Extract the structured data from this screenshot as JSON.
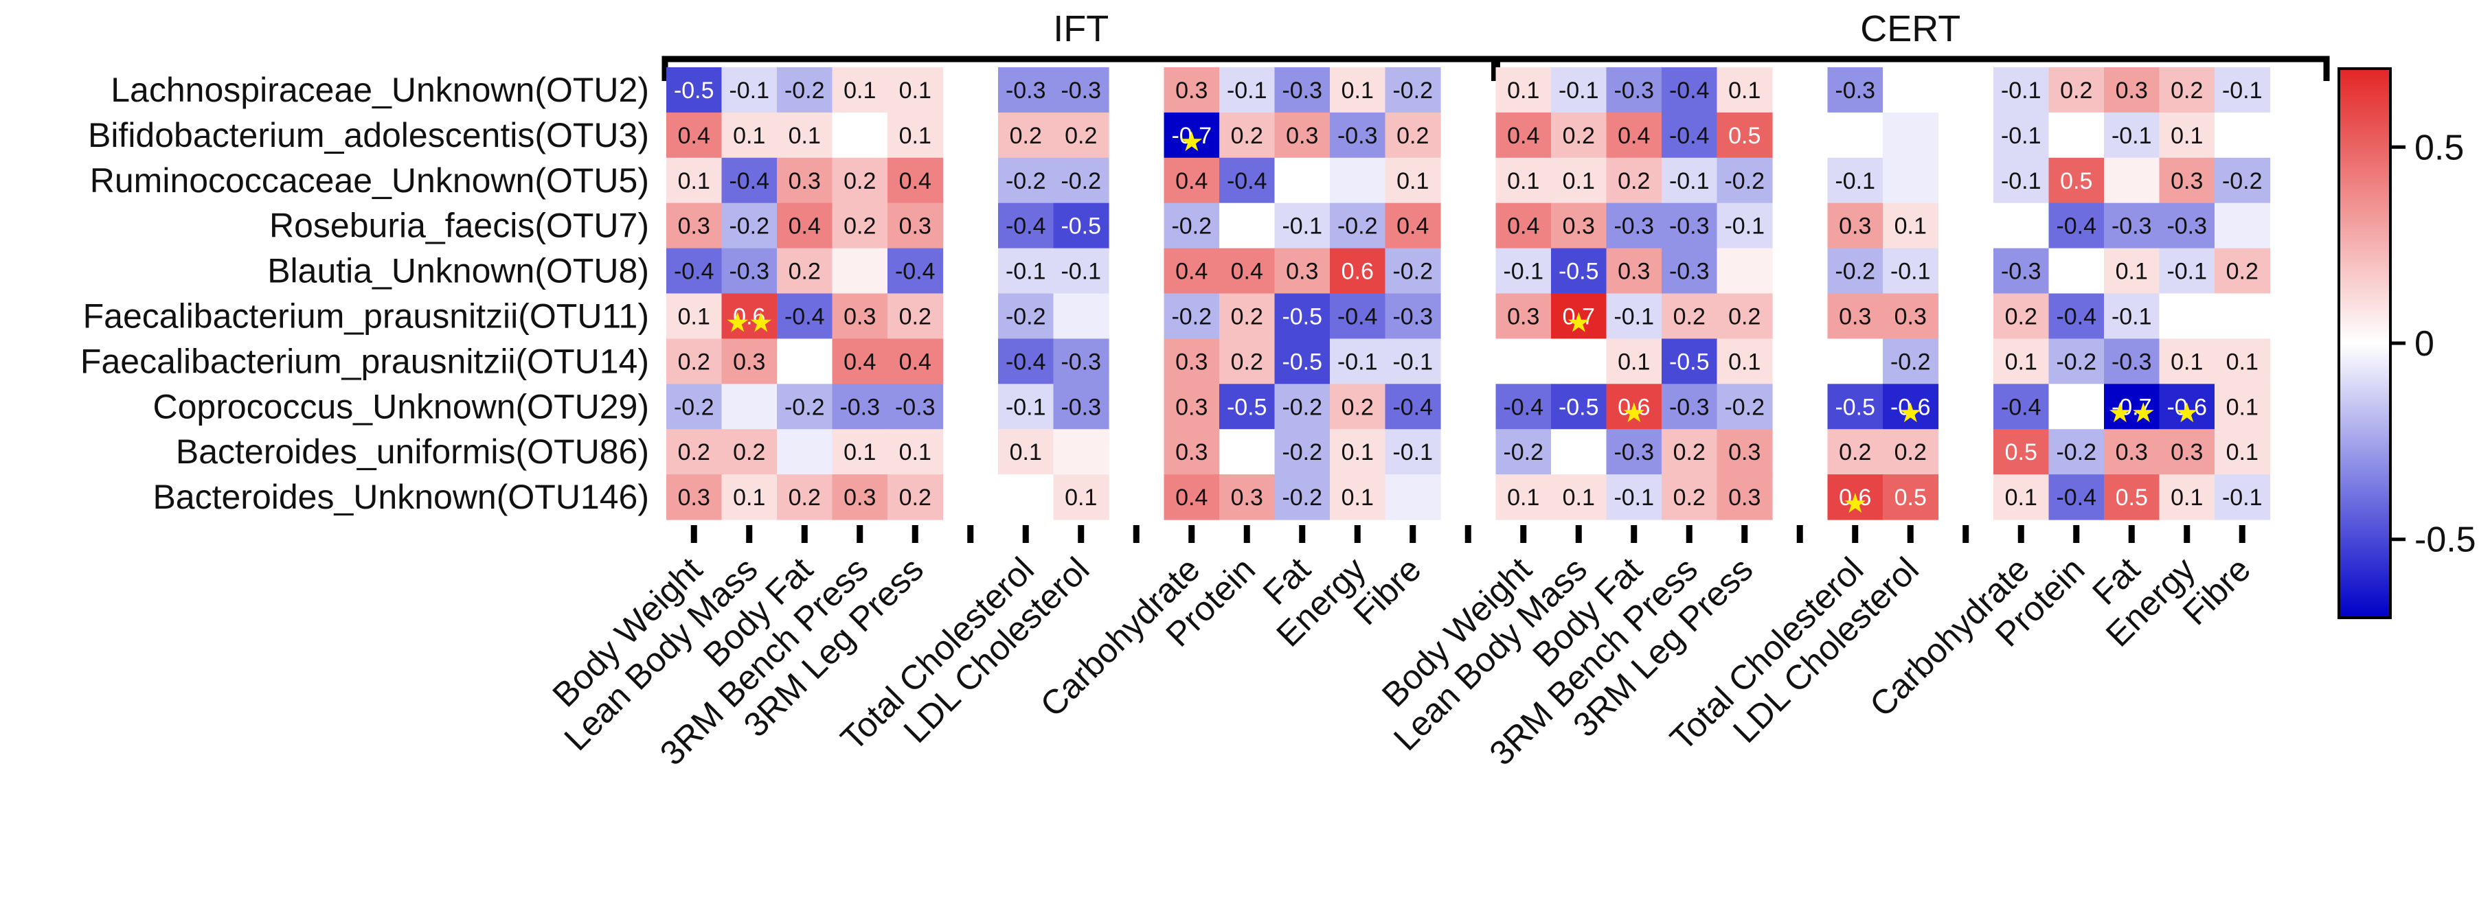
{
  "chart_data": {
    "type": "heatmap",
    "title": "",
    "groups": [
      {
        "name": "IFT",
        "column_range": [
          0,
          14
        ]
      },
      {
        "name": "CERT",
        "column_range": [
          15,
          29
        ]
      }
    ],
    "rows": [
      "Lachnospiraceae_Unknown(OTU2)",
      "Bifidobacterium_adolescentis(OTU3)",
      "Ruminococcaceae_Unknown(OTU5)",
      "Roseburia_faecis(OTU7)",
      "Blautia_Unknown(OTU8)",
      "Faecalibacterium_prausnitzii(OTU11)",
      "Faecalibacterium_prausnitzii(OTU14)",
      "Coprococcus_Unknown(OTU29)",
      "Bacteroides_uniformis(OTU86)",
      "Bacteroides_Unknown(OTU146)"
    ],
    "columns": [
      "Body Weight",
      "Lean Body Mass",
      "Body Fat",
      "3RM Bench Press",
      "3RM Leg Press",
      "",
      "Total Cholesterol",
      "LDL Cholesterol",
      "",
      "Carbohydrate",
      "Protein",
      "Fat",
      "Energy",
      "Fibre",
      "",
      "Body Weight",
      "Lean Body Mass",
      "Body Fat",
      "3RM Bench Press",
      "3RM Leg Press",
      "",
      "Total Cholesterol",
      "LDL Cholesterol",
      "",
      "Carbohydrate",
      "Protein",
      "Fat",
      "Energy",
      "Fibre"
    ],
    "spacer_columns": [
      5,
      8,
      14,
      20,
      23
    ],
    "values": [
      [
        -0.5,
        -0.1,
        -0.2,
        0.1,
        0.1,
        null,
        -0.3,
        -0.3,
        null,
        0.3,
        -0.1,
        -0.3,
        0.1,
        -0.2,
        null,
        0.1,
        -0.1,
        -0.3,
        -0.4,
        0.1,
        null,
        -0.3,
        0.0,
        null,
        -0.1,
        0.2,
        0.3,
        0.2,
        -0.1
      ],
      [
        0.4,
        0.1,
        0.1,
        0.0,
        0.1,
        null,
        0.2,
        0.2,
        null,
        -0.7,
        0.2,
        0.3,
        -0.3,
        0.2,
        null,
        0.4,
        0.2,
        0.4,
        -0.4,
        0.5,
        null,
        0.0,
        -0.05,
        null,
        -0.1,
        0.0,
        -0.1,
        0.1,
        0.0
      ],
      [
        0.1,
        -0.4,
        0.3,
        0.2,
        0.4,
        null,
        -0.2,
        -0.2,
        null,
        0.4,
        -0.4,
        0.0,
        -0.05,
        0.1,
        null,
        0.1,
        0.1,
        0.2,
        -0.1,
        -0.2,
        null,
        -0.1,
        -0.05,
        null,
        -0.1,
        0.5,
        0.05,
        0.3,
        -0.2
      ],
      [
        0.3,
        -0.2,
        0.4,
        0.2,
        0.3,
        null,
        -0.4,
        -0.5,
        null,
        -0.2,
        0.0,
        -0.1,
        -0.2,
        0.4,
        null,
        0.4,
        0.3,
        -0.3,
        -0.3,
        -0.1,
        null,
        0.3,
        0.1,
        null,
        0.0,
        -0.4,
        -0.3,
        -0.3,
        -0.05
      ],
      [
        -0.4,
        -0.3,
        0.2,
        0.05,
        -0.4,
        null,
        -0.1,
        -0.1,
        null,
        0.4,
        0.4,
        0.3,
        0.6,
        -0.2,
        null,
        -0.1,
        -0.5,
        0.3,
        -0.3,
        0.05,
        null,
        -0.2,
        -0.1,
        null,
        -0.3,
        0.0,
        0.1,
        -0.1,
        0.2
      ],
      [
        0.1,
        0.6,
        -0.4,
        0.3,
        0.2,
        null,
        -0.2,
        -0.05,
        null,
        -0.2,
        0.2,
        -0.5,
        -0.4,
        -0.3,
        null,
        0.3,
        0.7,
        -0.1,
        0.2,
        0.2,
        null,
        0.3,
        0.3,
        null,
        0.2,
        -0.4,
        -0.1,
        0.0,
        0.0
      ],
      [
        0.2,
        0.3,
        0.0,
        0.4,
        0.4,
        null,
        -0.4,
        -0.3,
        null,
        0.3,
        0.2,
        -0.5,
        -0.1,
        -0.1,
        null,
        0.0,
        0.0,
        0.1,
        -0.5,
        0.1,
        null,
        0.0,
        -0.2,
        null,
        0.1,
        -0.2,
        -0.3,
        0.1,
        0.1
      ],
      [
        -0.2,
        -0.05,
        -0.2,
        -0.3,
        -0.3,
        null,
        -0.1,
        -0.3,
        null,
        0.3,
        -0.5,
        -0.2,
        0.2,
        -0.4,
        null,
        -0.4,
        -0.5,
        0.6,
        -0.3,
        -0.2,
        null,
        -0.5,
        -0.6,
        null,
        -0.4,
        0.0,
        -0.7,
        -0.6,
        0.1
      ],
      [
        0.2,
        0.2,
        -0.05,
        0.1,
        0.1,
        null,
        0.1,
        0.05,
        null,
        0.3,
        0.0,
        -0.2,
        0.1,
        -0.1,
        null,
        -0.2,
        0.0,
        -0.3,
        0.2,
        0.3,
        null,
        0.2,
        0.2,
        null,
        0.5,
        -0.2,
        0.3,
        0.3,
        0.1
      ],
      [
        0.3,
        0.1,
        0.2,
        0.3,
        0.2,
        null,
        0.0,
        0.1,
        null,
        0.4,
        0.3,
        -0.2,
        0.1,
        -0.05,
        null,
        0.1,
        0.1,
        -0.1,
        0.2,
        0.3,
        null,
        0.6,
        0.5,
        null,
        0.1,
        -0.4,
        0.5,
        0.1,
        -0.1
      ]
    ],
    "labels": [
      [
        "-0.5",
        "-0.1",
        "-0.2",
        "0.1",
        "0.1",
        "",
        "-0.3",
        "-0.3",
        "",
        "0.3",
        "-0.1",
        "-0.3",
        "0.1",
        "-0.2",
        "",
        "0.1",
        "-0.1",
        "-0.3",
        "-0.4",
        "0.1",
        "",
        "-0.3",
        "",
        "",
        "-0.1",
        "0.2",
        "0.3",
        "0.2",
        "-0.1"
      ],
      [
        "0.4",
        "0.1",
        "0.1",
        "",
        "0.1",
        "",
        "0.2",
        "0.2",
        "",
        "-0.7",
        "0.2",
        "0.3",
        "-0.3",
        "0.2",
        "",
        "0.4",
        "0.2",
        "0.4",
        "-0.4",
        "0.5",
        "",
        "",
        "",
        "",
        "-0.1",
        "",
        "-0.1",
        "0.1",
        ""
      ],
      [
        "0.1",
        "-0.4",
        "0.3",
        "0.2",
        "0.4",
        "",
        "-0.2",
        "-0.2",
        "",
        "0.4",
        "-0.4",
        "",
        "",
        "0.1",
        "",
        "0.1",
        "0.1",
        "0.2",
        "-0.1",
        "-0.2",
        "",
        "-0.1",
        "",
        "",
        "-0.1",
        "0.5",
        "",
        "0.3",
        "-0.2"
      ],
      [
        "0.3",
        "-0.2",
        "0.4",
        "0.2",
        "0.3",
        "",
        "-0.4",
        "-0.5",
        "",
        "-0.2",
        "",
        "-0.1",
        "-0.2",
        "0.4",
        "",
        "0.4",
        "0.3",
        "-0.3",
        "-0.3",
        "-0.1",
        "",
        "0.3",
        "0.1",
        "",
        "",
        "-0.4",
        "-0.3",
        "-0.3",
        ""
      ],
      [
        "-0.4",
        "-0.3",
        "0.2",
        "",
        "-0.4",
        "",
        "-0.1",
        "-0.1",
        "",
        "0.4",
        "0.4",
        "0.3",
        "0.6",
        "-0.2",
        "",
        "-0.1",
        "-0.5",
        "0.3",
        "-0.3",
        "",
        "",
        "-0.2",
        "-0.1",
        "",
        "-0.3",
        "",
        "0.1",
        "-0.1",
        "0.2"
      ],
      [
        "0.1",
        "0.6",
        "-0.4",
        "0.3",
        "0.2",
        "",
        "-0.2",
        "",
        "",
        "-0.2",
        "0.2",
        "-0.5",
        "-0.4",
        "-0.3",
        "",
        "0.3",
        "0.7",
        "-0.1",
        "0.2",
        "0.2",
        "",
        "0.3",
        "0.3",
        "",
        "0.2",
        "-0.4",
        "-0.1",
        "",
        ""
      ],
      [
        "0.2",
        "0.3",
        "",
        "0.4",
        "0.4",
        "",
        "-0.4",
        "-0.3",
        "",
        "0.3",
        "0.2",
        "-0.5",
        "-0.1",
        "-0.1",
        "",
        "",
        "",
        "0.1",
        "-0.5",
        "0.1",
        "",
        "",
        "-0.2",
        "",
        "0.1",
        "-0.2",
        "-0.3",
        "0.1",
        "0.1"
      ],
      [
        "-0.2",
        "",
        "-0.2",
        "-0.3",
        "-0.3",
        "",
        "-0.1",
        "-0.3",
        "",
        "0.3",
        "-0.5",
        "-0.2",
        "0.2",
        "-0.4",
        "",
        "-0.4",
        "-0.5",
        "0.6",
        "-0.3",
        "-0.2",
        "",
        "-0.5",
        "-0.6",
        "",
        "-0.4",
        "",
        "-0.7",
        "-0.6",
        "0.1"
      ],
      [
        "0.2",
        "0.2",
        "",
        "0.1",
        "0.1",
        "",
        "0.1",
        "",
        "",
        "0.3",
        "",
        "-0.2",
        "0.1",
        "-0.1",
        "",
        "-0.2",
        "",
        "-0.3",
        "0.2",
        "0.3",
        "",
        "0.2",
        "0.2",
        "",
        "0.5",
        "-0.2",
        "0.3",
        "0.3",
        "0.1"
      ],
      [
        "0.3",
        "0.1",
        "0.2",
        "0.3",
        "0.2",
        "",
        "",
        "0.1",
        "",
        "0.4",
        "0.3",
        "-0.2",
        "0.1",
        "",
        "",
        "0.1",
        "0.1",
        "-0.1",
        "0.2",
        "0.3",
        "",
        "0.6",
        "0.5",
        "",
        "0.1",
        "-0.4",
        "0.5",
        "0.1",
        "-0.1"
      ]
    ],
    "significance": [
      {
        "row": 1,
        "col": 9,
        "stars": 1
      },
      {
        "row": 5,
        "col": 1,
        "stars": 2
      },
      {
        "row": 5,
        "col": 16,
        "stars": 1
      },
      {
        "row": 7,
        "col": 17,
        "stars": 1
      },
      {
        "row": 7,
        "col": 22,
        "stars": 1
      },
      {
        "row": 7,
        "col": 26,
        "stars": 2
      },
      {
        "row": 7,
        "col": 27,
        "stars": 1
      },
      {
        "row": 9,
        "col": 21,
        "stars": 1
      }
    ],
    "color_scale": {
      "min": -0.7,
      "max": 0.7,
      "low_color": "#0000c8",
      "mid_color": "#ffffff",
      "high_color": "#e32626",
      "ticks": [
        0.5,
        0,
        -0.5
      ],
      "tick_labels": [
        "0.5",
        "0",
        "-0.5"
      ]
    },
    "star_color": "#ffee00",
    "star_glyph": "★"
  }
}
